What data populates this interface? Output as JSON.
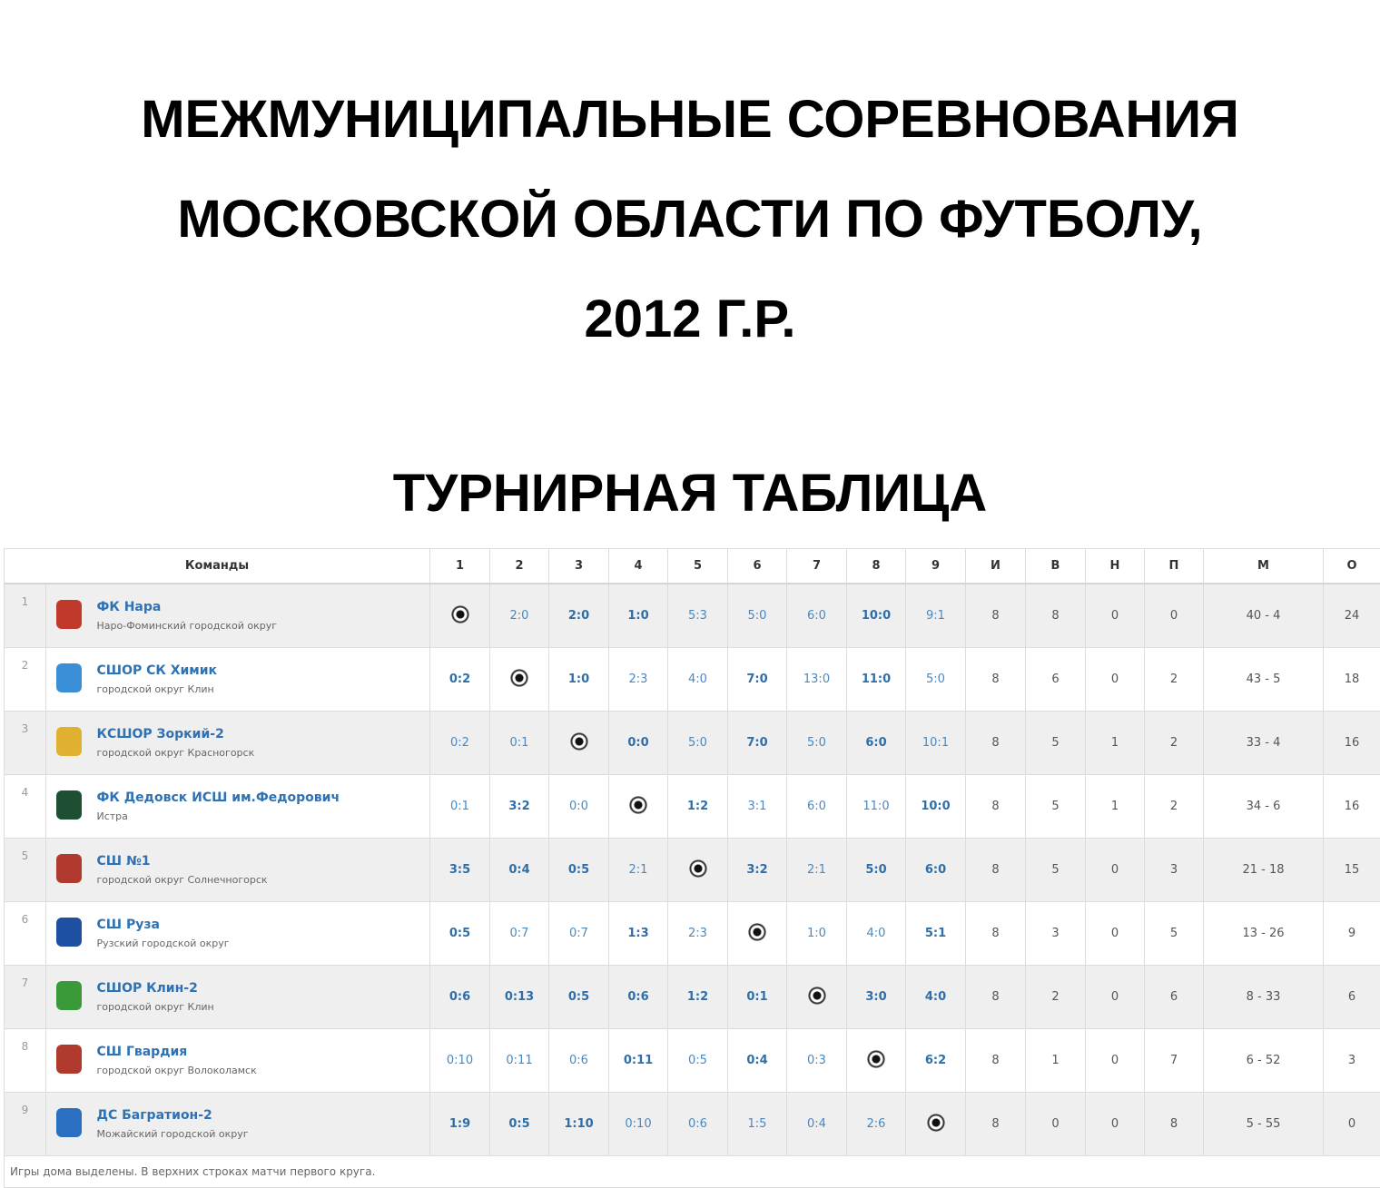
{
  "title": {
    "lines": [
      "МЕЖМУНИЦИПАЛЬНЫЕ СОРЕВНОВАНИЯ",
      "МОСКОВСКОЙ ОБЛАСТИ ПО ФУТБОЛУ,",
      "2012 Г.Р."
    ]
  },
  "subtitle": "ТУРНИРНАЯ ТАБЛИЦА",
  "table": {
    "headers": {
      "team": "Команды",
      "cols": [
        "1",
        "2",
        "3",
        "4",
        "5",
        "6",
        "7",
        "8",
        "9"
      ],
      "stats": [
        "И",
        "В",
        "Н",
        "П",
        "М",
        "О"
      ]
    },
    "rows": [
      {
        "pos": "1",
        "name": "ФК Нара",
        "city": "Наро-Фоминский городской округ",
        "logo_color": "#c0392b",
        "cells": [
          null,
          {
            "v": "2:0",
            "b": false
          },
          {
            "v": "2:0",
            "b": true
          },
          {
            "v": "1:0",
            "b": true
          },
          {
            "v": "5:3",
            "b": false
          },
          {
            "v": "5:0",
            "b": false
          },
          {
            "v": "6:0",
            "b": false
          },
          {
            "v": "10:0",
            "b": true
          },
          {
            "v": "9:1",
            "b": false
          }
        ],
        "stats": [
          "8",
          "8",
          "0",
          "0",
          "40 - 4",
          "24"
        ]
      },
      {
        "pos": "2",
        "name": "СШОР СК Химик",
        "city": "городской округ Клин",
        "logo_color": "#3a8fd6",
        "cells": [
          {
            "v": "0:2",
            "b": true
          },
          null,
          {
            "v": "1:0",
            "b": true
          },
          {
            "v": "2:3",
            "b": false
          },
          {
            "v": "4:0",
            "b": false
          },
          {
            "v": "7:0",
            "b": true
          },
          {
            "v": "13:0",
            "b": false
          },
          {
            "v": "11:0",
            "b": true
          },
          {
            "v": "5:0",
            "b": false
          }
        ],
        "stats": [
          "8",
          "6",
          "0",
          "2",
          "43 - 5",
          "18"
        ]
      },
      {
        "pos": "3",
        "name": "КСШОР Зоркий-2",
        "city": "городской округ Красногорск",
        "logo_color": "#e0b030",
        "cells": [
          {
            "v": "0:2",
            "b": false
          },
          {
            "v": "0:1",
            "b": false
          },
          null,
          {
            "v": "0:0",
            "b": true
          },
          {
            "v": "5:0",
            "b": false
          },
          {
            "v": "7:0",
            "b": true
          },
          {
            "v": "5:0",
            "b": false
          },
          {
            "v": "6:0",
            "b": true
          },
          {
            "v": "10:1",
            "b": false
          }
        ],
        "stats": [
          "8",
          "5",
          "1",
          "2",
          "33 - 4",
          "16"
        ]
      },
      {
        "pos": "4",
        "name": "ФК Дедовск ИСШ им.Федорович",
        "city": "Истра",
        "logo_color": "#1f4f32",
        "cells": [
          {
            "v": "0:1",
            "b": false
          },
          {
            "v": "3:2",
            "b": true
          },
          {
            "v": "0:0",
            "b": false
          },
          null,
          {
            "v": "1:2",
            "b": true
          },
          {
            "v": "3:1",
            "b": false
          },
          {
            "v": "6:0",
            "b": false
          },
          {
            "v": "11:0",
            "b": false
          },
          {
            "v": "10:0",
            "b": true
          }
        ],
        "stats": [
          "8",
          "5",
          "1",
          "2",
          "34 - 6",
          "16"
        ]
      },
      {
        "pos": "5",
        "name": "СШ №1",
        "city": "городской округ Солнечногорск",
        "logo_color": "#b03a2e",
        "cells": [
          {
            "v": "3:5",
            "b": true
          },
          {
            "v": "0:4",
            "b": true
          },
          {
            "v": "0:5",
            "b": true
          },
          {
            "v": "2:1",
            "b": false
          },
          null,
          {
            "v": "3:2",
            "b": true
          },
          {
            "v": "2:1",
            "b": false
          },
          {
            "v": "5:0",
            "b": true
          },
          {
            "v": "6:0",
            "b": true
          }
        ],
        "stats": [
          "8",
          "5",
          "0",
          "3",
          "21 - 18",
          "15"
        ]
      },
      {
        "pos": "6",
        "name": "СШ Руза",
        "city": "Рузский городской округ",
        "logo_color": "#1f4fa0",
        "cells": [
          {
            "v": "0:5",
            "b": true
          },
          {
            "v": "0:7",
            "b": false
          },
          {
            "v": "0:7",
            "b": false
          },
          {
            "v": "1:3",
            "b": true
          },
          {
            "v": "2:3",
            "b": false
          },
          null,
          {
            "v": "1:0",
            "b": false
          },
          {
            "v": "4:0",
            "b": false
          },
          {
            "v": "5:1",
            "b": true
          }
        ],
        "stats": [
          "8",
          "3",
          "0",
          "5",
          "13 - 26",
          "9"
        ]
      },
      {
        "pos": "7",
        "name": "СШОР Клин-2",
        "city": "городской округ Клин",
        "logo_color": "#3a9a3a",
        "cells": [
          {
            "v": "0:6",
            "b": true
          },
          {
            "v": "0:13",
            "b": true
          },
          {
            "v": "0:5",
            "b": true
          },
          {
            "v": "0:6",
            "b": true
          },
          {
            "v": "1:2",
            "b": true
          },
          {
            "v": "0:1",
            "b": true
          },
          null,
          {
            "v": "3:0",
            "b": true
          },
          {
            "v": "4:0",
            "b": true
          }
        ],
        "stats": [
          "8",
          "2",
          "0",
          "6",
          "8 - 33",
          "6"
        ]
      },
      {
        "pos": "8",
        "name": "СШ Гвардия",
        "city": "городской округ Волоколамск",
        "logo_color": "#b03a2e",
        "cells": [
          {
            "v": "0:10",
            "b": false
          },
          {
            "v": "0:11",
            "b": false
          },
          {
            "v": "0:6",
            "b": false
          },
          {
            "v": "0:11",
            "b": true
          },
          {
            "v": "0:5",
            "b": false
          },
          {
            "v": "0:4",
            "b": true
          },
          {
            "v": "0:3",
            "b": false
          },
          null,
          {
            "v": "6:2",
            "b": true
          }
        ],
        "stats": [
          "8",
          "1",
          "0",
          "7",
          "6 - 52",
          "3"
        ]
      },
      {
        "pos": "9",
        "name": "ДС Багратион-2",
        "city": "Можайский городской округ",
        "logo_color": "#2a6fc0",
        "cells": [
          {
            "v": "1:9",
            "b": true
          },
          {
            "v": "0:5",
            "b": true
          },
          {
            "v": "1:10",
            "b": true
          },
          {
            "v": "0:10",
            "b": false
          },
          {
            "v": "0:6",
            "b": false
          },
          {
            "v": "1:5",
            "b": false
          },
          {
            "v": "0:4",
            "b": false
          },
          {
            "v": "2:6",
            "b": false
          },
          null
        ],
        "stats": [
          "8",
          "0",
          "0",
          "8",
          "5 - 55",
          "0"
        ]
      }
    ],
    "footnote": "Игры дома выделены. В верхних строках матчи первого круга."
  }
}
